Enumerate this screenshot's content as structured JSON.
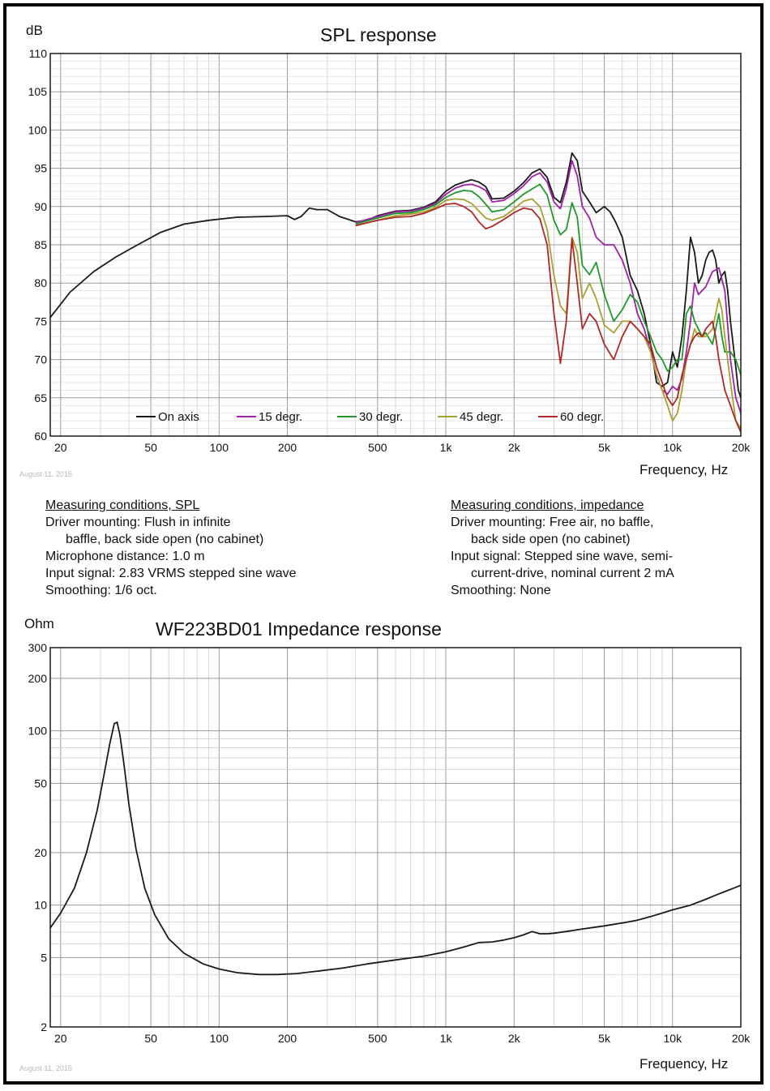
{
  "chart_data": [
    {
      "type": "line",
      "title": "SPL response",
      "ylabel": "dB",
      "xlabel": "Frequency, Hz",
      "xscale": "log",
      "xlim": [
        18,
        20000
      ],
      "ylim": [
        60,
        110
      ],
      "x_ticks": [
        20,
        50,
        100,
        200,
        500,
        1000,
        2000,
        5000,
        10000,
        20000
      ],
      "x_tick_labels": [
        "20",
        "50",
        "100",
        "200",
        "500",
        "1k",
        "2k",
        "5k",
        "10k",
        "20k"
      ],
      "y_ticks": [
        60,
        65,
        70,
        75,
        80,
        85,
        90,
        95,
        100,
        105,
        110
      ],
      "y_tick_labels": [
        "60",
        "65",
        "70",
        "75",
        "80",
        "85",
        "90",
        "95",
        "100",
        "105",
        "110"
      ],
      "legend_position": "bottom",
      "date_stamp": "August 11, 2015",
      "series": [
        {
          "name": "On axis",
          "color": "#1a1a1a",
          "x": [
            18,
            22,
            28,
            35,
            45,
            55,
            70,
            90,
            120,
            160,
            200,
            215,
            230,
            250,
            270,
            300,
            340,
            400,
            450,
            500,
            600,
            700,
            800,
            900,
            1000,
            1100,
            1200,
            1300,
            1400,
            1500,
            1600,
            1800,
            2000,
            2200,
            2400,
            2600,
            2800,
            3000,
            3200,
            3400,
            3600,
            3800,
            4000,
            4300,
            4600,
            5000,
            5300,
            5600,
            6000,
            6500,
            7000,
            7500,
            8000,
            8500,
            9000,
            9500,
            10000,
            10500,
            11000,
            11500,
            12000,
            12500,
            13000,
            13500,
            14000,
            14500,
            15000,
            15500,
            16000,
            16500,
            17000,
            17500,
            18000,
            18500,
            19000,
            19500,
            20000
          ],
          "y": [
            75.5,
            78.8,
            81.5,
            83.4,
            85.2,
            86.6,
            87.7,
            88.2,
            88.6,
            88.7,
            88.8,
            88.3,
            88.7,
            89.8,
            89.6,
            89.6,
            88.7,
            88.0,
            88.2,
            88.8,
            89.4,
            89.5,
            89.9,
            90.6,
            92.0,
            92.8,
            93.2,
            93.5,
            93.2,
            92.6,
            91.0,
            91.1,
            92.0,
            93.1,
            94.4,
            94.9,
            93.8,
            91.2,
            90.5,
            93.2,
            97.0,
            96.0,
            92.0,
            90.6,
            89.2,
            90.0,
            89.3,
            88.0,
            86.0,
            81.0,
            79.0,
            76.0,
            72.0,
            67.0,
            66.5,
            67.0,
            71.0,
            69.0,
            73.0,
            79.0,
            86.0,
            84.0,
            80.0,
            81.0,
            83.0,
            84.0,
            84.3,
            83.0,
            80.0,
            81.0,
            81.5,
            79.0,
            75.0,
            72.0,
            69.0,
            66.0,
            65.0
          ]
        },
        {
          "name": "15 degr.",
          "color": "#a020a8",
          "x": [
            400,
            500,
            600,
            700,
            800,
            900,
            1000,
            1100,
            1200,
            1300,
            1400,
            1500,
            1600,
            1800,
            2000,
            2200,
            2400,
            2600,
            2800,
            3000,
            3200,
            3400,
            3600,
            3800,
            4000,
            4300,
            4600,
            5000,
            5500,
            6000,
            6500,
            7000,
            7500,
            8000,
            8500,
            9000,
            9500,
            10000,
            10500,
            11000,
            11500,
            12000,
            12500,
            13000,
            14000,
            15000,
            15500,
            16000,
            16500,
            17000,
            18000,
            19000,
            20000
          ],
          "y": [
            87.9,
            88.7,
            89.3,
            89.4,
            89.8,
            90.4,
            91.6,
            92.4,
            92.8,
            92.9,
            92.6,
            92.1,
            90.6,
            90.8,
            91.7,
            92.7,
            93.9,
            94.4,
            93.2,
            90.6,
            89.7,
            92.4,
            96.0,
            94.0,
            90.0,
            88.5,
            86.0,
            85.0,
            85.0,
            83.0,
            80.0,
            76.0,
            74.0,
            71.0,
            68.0,
            66.0,
            65.5,
            66.5,
            66.0,
            67.5,
            71.0,
            75.0,
            80.0,
            78.5,
            79.5,
            81.5,
            81.7,
            82.0,
            80.5,
            79.0,
            70.0,
            65.0,
            63.0
          ]
        },
        {
          "name": "30 degr.",
          "color": "#1f9a2a",
          "x": [
            400,
            500,
            600,
            700,
            800,
            900,
            1000,
            1100,
            1200,
            1300,
            1400,
            1500,
            1600,
            1800,
            2000,
            2200,
            2400,
            2600,
            2800,
            3000,
            3200,
            3400,
            3600,
            3800,
            4000,
            4300,
            4600,
            5000,
            5500,
            6000,
            6500,
            7000,
            7500,
            8000,
            8500,
            9000,
            9500,
            10000,
            10500,
            11000,
            11500,
            12000,
            12500,
            13000,
            13500,
            14000,
            15000,
            15500,
            16000,
            16500,
            17000,
            18000,
            19000,
            20000
          ],
          "y": [
            87.7,
            88.5,
            89.1,
            89.2,
            89.6,
            90.2,
            91.2,
            91.8,
            92.1,
            92.0,
            91.3,
            90.3,
            89.3,
            89.6,
            90.6,
            91.6,
            92.3,
            92.9,
            91.5,
            88.2,
            86.3,
            87.0,
            90.5,
            88.6,
            82.3,
            81.1,
            82.7,
            78.5,
            75.0,
            76.5,
            78.5,
            77.5,
            75.0,
            73.0,
            71.0,
            70.0,
            68.5,
            69.0,
            70.0,
            70.0,
            76.0,
            77.0,
            75.0,
            74.0,
            73.0,
            73.5,
            72.0,
            74.0,
            76.0,
            73.0,
            71.0,
            71.0,
            70.0,
            68.0
          ]
        },
        {
          "name": "45 degr.",
          "color": "#a8a030",
          "x": [
            400,
            500,
            600,
            700,
            800,
            900,
            1000,
            1100,
            1200,
            1300,
            1400,
            1500,
            1600,
            1800,
            2000,
            2200,
            2400,
            2600,
            2800,
            3000,
            3200,
            3400,
            3600,
            3800,
            4000,
            4300,
            4600,
            5000,
            5500,
            6000,
            6500,
            7000,
            7500,
            8000,
            8500,
            9000,
            9500,
            10000,
            10500,
            11000,
            11500,
            12000,
            12500,
            13000,
            13500,
            14000,
            15000,
            15500,
            16000,
            16500,
            17000,
            18000,
            19000,
            20000
          ],
          "y": [
            87.5,
            88.2,
            88.8,
            89.0,
            89.3,
            89.9,
            90.8,
            91.0,
            90.9,
            90.4,
            89.4,
            88.5,
            88.2,
            88.7,
            89.7,
            90.7,
            91.0,
            90.0,
            87.0,
            81.0,
            77.0,
            76.0,
            86.0,
            84.0,
            78.0,
            80.0,
            78.0,
            74.5,
            73.5,
            75.0,
            75.0,
            74.0,
            73.0,
            71.0,
            68.0,
            66.0,
            64.0,
            62.0,
            63.0,
            66.0,
            70.0,
            72.0,
            74.0,
            73.0,
            73.0,
            73.0,
            74.0,
            76.0,
            78.0,
            76.5,
            73.0,
            67.0,
            62.0,
            61.0
          ]
        },
        {
          "name": "60 degr.",
          "color": "#b02828",
          "x": [
            400,
            500,
            600,
            700,
            800,
            900,
            1000,
            1100,
            1200,
            1300,
            1400,
            1500,
            1600,
            1800,
            2000,
            2200,
            2400,
            2600,
            2800,
            3000,
            3200,
            3400,
            3600,
            3800,
            4000,
            4300,
            4600,
            5000,
            5500,
            6000,
            6500,
            7000,
            7500,
            8000,
            8500,
            9000,
            9500,
            10000,
            10500,
            11000,
            11500,
            12000,
            12500,
            13000,
            13500,
            14000,
            15000,
            15500,
            16000,
            16500,
            17000,
            18000,
            19000,
            20000
          ],
          "y": [
            87.5,
            88.2,
            88.6,
            88.7,
            89.1,
            89.7,
            90.3,
            90.4,
            90.0,
            89.3,
            88.0,
            87.1,
            87.4,
            88.3,
            89.2,
            89.8,
            89.6,
            88.4,
            85.0,
            76.0,
            69.5,
            75.0,
            85.8,
            80.0,
            74.0,
            76.0,
            75.0,
            72.0,
            70.0,
            73.0,
            75.0,
            74.0,
            73.0,
            72.0,
            69.0,
            67.0,
            65.0,
            64.0,
            65.0,
            68.0,
            70.0,
            72.0,
            73.0,
            73.5,
            73.0,
            74.0,
            75.0,
            73.0,
            70.0,
            68.0,
            66.0,
            64.0,
            62.0,
            60.5
          ]
        }
      ]
    },
    {
      "type": "line",
      "title": "WF223BD01  Impedance response",
      "ylabel": "Ohm",
      "xlabel": "Frequency, Hz",
      "xscale": "log",
      "yscale": "log",
      "xlim": [
        18,
        20000
      ],
      "ylim": [
        2,
        300
      ],
      "x_ticks": [
        20,
        50,
        100,
        200,
        500,
        1000,
        2000,
        5000,
        10000,
        20000
      ],
      "x_tick_labels": [
        "20",
        "50",
        "100",
        "200",
        "500",
        "1k",
        "2k",
        "5k",
        "10k",
        "20k"
      ],
      "y_ticks": [
        2,
        5,
        10,
        20,
        50,
        100,
        200,
        300
      ],
      "y_tick_labels": [
        "2",
        "5",
        "10",
        "20",
        "50",
        "100",
        "200",
        "300"
      ],
      "date_stamp": "August 11, 2015",
      "series": [
        {
          "name": "Impedance",
          "color": "#1a1a1a",
          "x": [
            18,
            20,
            23,
            26,
            29,
            31,
            33,
            34.5,
            35.5,
            36.5,
            38,
            40,
            43,
            47,
            52,
            60,
            70,
            85,
            100,
            120,
            150,
            180,
            220,
            280,
            350,
            450,
            600,
            800,
            1000,
            1200,
            1400,
            1600,
            1800,
            2000,
            2200,
            2400,
            2600,
            2800,
            3000,
            3500,
            4000,
            5000,
            6000,
            7000,
            8000,
            9000,
            10000,
            12000,
            14000,
            16000,
            18000,
            20000
          ],
          "y": [
            7.4,
            9.0,
            12.5,
            20.0,
            35.0,
            55.0,
            85.0,
            110.0,
            112.0,
            95.0,
            65.0,
            38.0,
            21.0,
            12.5,
            8.8,
            6.4,
            5.3,
            4.6,
            4.3,
            4.1,
            4.0,
            4.0,
            4.05,
            4.2,
            4.35,
            4.6,
            4.85,
            5.1,
            5.4,
            5.75,
            6.1,
            6.15,
            6.3,
            6.5,
            6.75,
            7.05,
            6.85,
            6.85,
            6.9,
            7.1,
            7.3,
            7.6,
            7.9,
            8.2,
            8.6,
            9.0,
            9.4,
            10.0,
            10.8,
            11.6,
            12.3,
            13.0
          ]
        }
      ]
    }
  ],
  "conditions": {
    "spl": {
      "heading": "Measuring conditions, SPL",
      "lines": [
        {
          "text": "Driver mounting: Flush in infinite",
          "indent": false
        },
        {
          "text": "baffle, back side open (no cabinet)",
          "indent": true
        },
        {
          "text": "Microphone distance: 1.0 m",
          "indent": false
        },
        {
          "text": "Input signal: 2.83 VRMS stepped sine wave",
          "indent": false
        },
        {
          "text": "Smoothing: 1/6 oct.",
          "indent": false
        }
      ]
    },
    "impedance": {
      "heading": "Measuring conditions, impedance",
      "lines": [
        {
          "text": "Driver mounting: Free air, no baffle,",
          "indent": false
        },
        {
          "text": "back side open (no cabinet)",
          "indent": true
        },
        {
          "text": "Input signal: Stepped sine wave, semi-",
          "indent": false
        },
        {
          "text": "current-drive, nominal current 2 mA",
          "indent": true
        },
        {
          "text": "Smoothing: None",
          "indent": false
        }
      ]
    }
  }
}
